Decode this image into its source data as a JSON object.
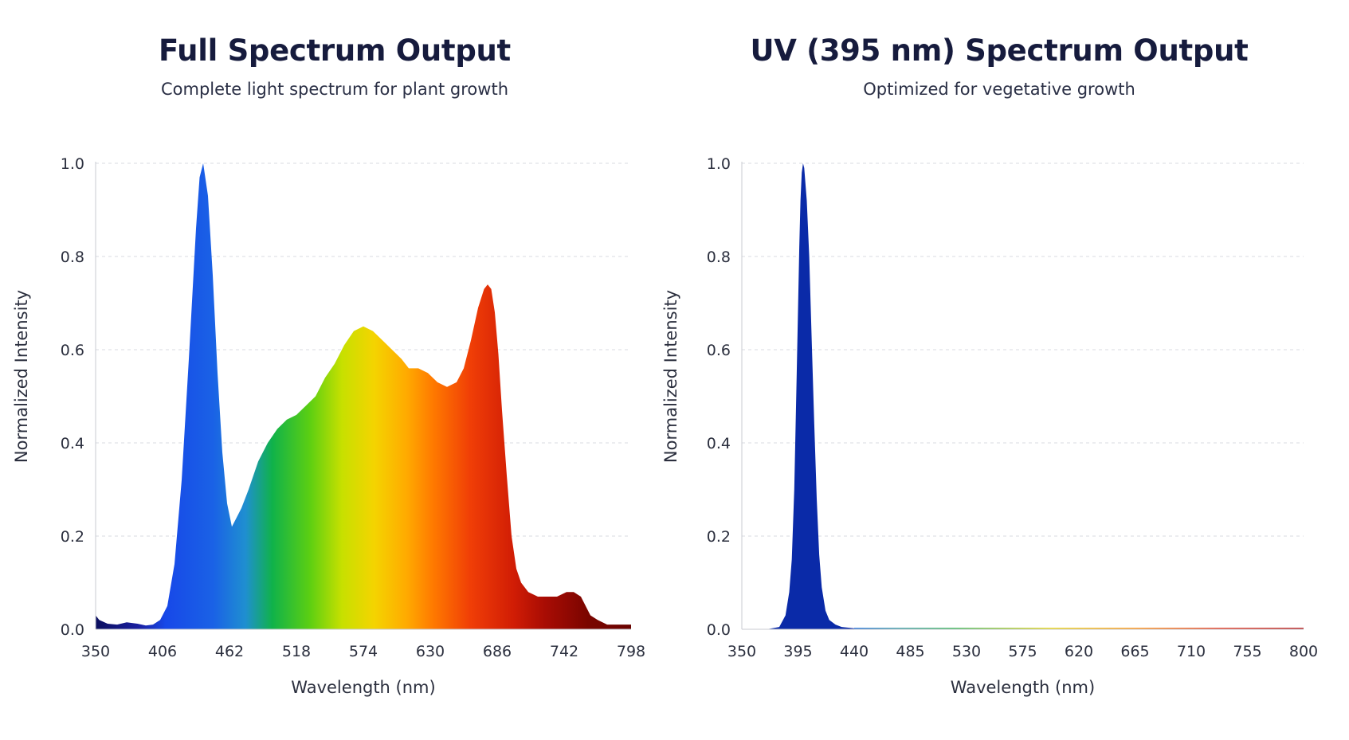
{
  "chart_data": [
    {
      "type": "area",
      "title": "Full Spectrum Output",
      "subtitle": "Complete light spectrum for plant growth",
      "xlabel": "Wavelength (nm)",
      "ylabel": "Normalized Intensity",
      "xlim": [
        350,
        798
      ],
      "ylim": [
        0,
        1.0
      ],
      "xticks": [
        "350",
        "406",
        "462",
        "518",
        "574",
        "630",
        "686",
        "742",
        "798"
      ],
      "yticks": [
        "0.0",
        "0.2",
        "0.4",
        "0.6",
        "0.8",
        "1.0"
      ],
      "grid": true,
      "fill": "wavelength-gradient",
      "series": [
        {
          "x": [
            350,
            353,
            360,
            368,
            376,
            385,
            392,
            398,
            404,
            410,
            416,
            422,
            428,
            434,
            437,
            440,
            444,
            448,
            452,
            456,
            460,
            464,
            468,
            472,
            478,
            486,
            494,
            502,
            510,
            518,
            526,
            534,
            542,
            550,
            558,
            566,
            574,
            582,
            590,
            598,
            606,
            612,
            620,
            628,
            636,
            644,
            652,
            658,
            664,
            670,
            675,
            678,
            681,
            684,
            687,
            690,
            694,
            698,
            702,
            706,
            712,
            720,
            728,
            736,
            744,
            750,
            756,
            760,
            764,
            770,
            778,
            786,
            792,
            798
          ],
          "y": [
            0.03,
            0.02,
            0.012,
            0.01,
            0.015,
            0.012,
            0.008,
            0.01,
            0.02,
            0.05,
            0.14,
            0.32,
            0.58,
            0.86,
            0.97,
            1.0,
            0.93,
            0.76,
            0.55,
            0.38,
            0.27,
            0.22,
            0.24,
            0.26,
            0.3,
            0.36,
            0.4,
            0.43,
            0.45,
            0.46,
            0.48,
            0.5,
            0.54,
            0.57,
            0.61,
            0.64,
            0.65,
            0.64,
            0.62,
            0.6,
            0.58,
            0.56,
            0.56,
            0.55,
            0.53,
            0.52,
            0.53,
            0.56,
            0.62,
            0.69,
            0.73,
            0.74,
            0.73,
            0.68,
            0.59,
            0.47,
            0.33,
            0.2,
            0.13,
            0.1,
            0.08,
            0.07,
            0.07,
            0.07,
            0.08,
            0.08,
            0.07,
            0.05,
            0.03,
            0.02,
            0.01,
            0.01,
            0.01,
            0.01
          ]
        }
      ]
    },
    {
      "type": "area",
      "title": "UV (395 nm) Spectrum Output",
      "subtitle": "Optimized for vegetative growth",
      "xlabel": "Wavelength (nm)",
      "ylabel": "Normalized Intensity",
      "xlim": [
        350,
        800
      ],
      "ylim": [
        0,
        1.0
      ],
      "xticks": [
        "350",
        "395",
        "440",
        "485",
        "530",
        "575",
        "620",
        "665",
        "710",
        "755",
        "800"
      ],
      "yticks": [
        "0.0",
        "0.2",
        "0.4",
        "0.6",
        "0.8",
        "1.0"
      ],
      "grid": true,
      "fill": "#0a2aa8",
      "peak_nm": 399,
      "series": [
        {
          "x": [
            350,
            370,
            380,
            385,
            388,
            390,
            392,
            394,
            396,
            397,
            398,
            399,
            400,
            402,
            404,
            406,
            408,
            410,
            412,
            414,
            417,
            420,
            425,
            430,
            440,
            500,
            600,
            700,
            800
          ],
          "y": [
            0.0,
            0.0,
            0.005,
            0.03,
            0.08,
            0.15,
            0.3,
            0.55,
            0.82,
            0.92,
            0.98,
            1.0,
            0.99,
            0.92,
            0.8,
            0.62,
            0.44,
            0.28,
            0.16,
            0.09,
            0.04,
            0.02,
            0.01,
            0.005,
            0.002,
            0.0,
            0.0,
            0.0,
            0.0
          ]
        }
      ]
    }
  ]
}
